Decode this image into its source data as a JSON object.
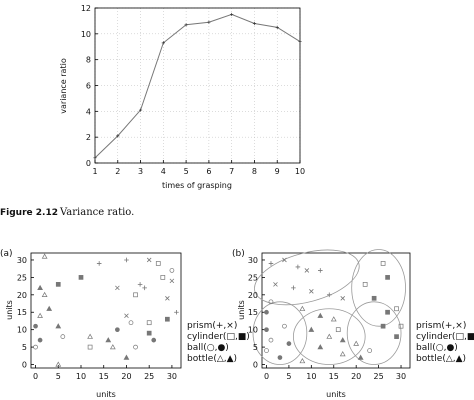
{
  "caption": {
    "number": "Figure 2.12",
    "text": "Variance ratio."
  },
  "chart_data": [
    {
      "type": "line",
      "title": "",
      "xlabel": "times of grasping",
      "ylabel": "variance ratio",
      "x": [
        1,
        2,
        3,
        4,
        5,
        6,
        7,
        8,
        9,
        10
      ],
      "series": [
        {
          "values": [
            0.4,
            2.1,
            4.1,
            9.3,
            10.7,
            10.9,
            11.5,
            10.8,
            10.5,
            9.4
          ]
        }
      ],
      "xlim": [
        1,
        10
      ],
      "ylim": [
        0,
        12
      ],
      "xticks": [
        1,
        2,
        3,
        4,
        5,
        6,
        7,
        8,
        9,
        10
      ],
      "yticks": [
        0,
        2,
        4,
        6,
        8,
        10,
        12
      ],
      "grid": true,
      "line_color": "#777777"
    },
    {
      "type": "scatter",
      "panel_label": "(a)",
      "xlabel": "units",
      "ylabel": "units",
      "xlim": [
        -1,
        32
      ],
      "ylim": [
        -1,
        32
      ],
      "xticks": [
        0,
        5,
        10,
        15,
        20,
        25,
        30
      ],
      "yticks": [
        0,
        5,
        10,
        15,
        20,
        25,
        30
      ],
      "legend_position": "right",
      "series": [
        {
          "name": "prism(+,×)",
          "marker": "cross",
          "points": [
            [
              20,
              30
            ],
            [
              25,
              30
            ],
            [
              14,
              29
            ],
            [
              30,
              24
            ],
            [
              23,
              23
            ],
            [
              18,
              22
            ],
            [
              24,
              22
            ],
            [
              29,
              19
            ],
            [
              31,
              15
            ],
            [
              20,
              14
            ]
          ]
        },
        {
          "name": "cylinder(□,■)",
          "marker": "square",
          "points": [
            [
              27,
              29
            ],
            [
              10,
              25
            ],
            [
              28,
              25
            ],
            [
              5,
              23
            ],
            [
              22,
              20
            ],
            [
              29,
              13
            ],
            [
              25,
              12
            ],
            [
              25,
              9
            ],
            [
              12,
              5
            ]
          ]
        },
        {
          "name": "ball(○,●)",
          "marker": "circle",
          "points": [
            [
              30,
              27
            ],
            [
              0,
              11
            ],
            [
              6,
              8
            ],
            [
              1,
              7
            ],
            [
              0,
              5
            ],
            [
              18,
              10
            ],
            [
              21,
              12
            ],
            [
              26,
              7
            ],
            [
              22,
              5
            ]
          ]
        },
        {
          "name": "bottle(△,▲)",
          "marker": "triangle",
          "points": [
            [
              2,
              31
            ],
            [
              1,
              22
            ],
            [
              2,
              20
            ],
            [
              3,
              16
            ],
            [
              1,
              14
            ],
            [
              5,
              11
            ],
            [
              12,
              8
            ],
            [
              16,
              7
            ],
            [
              17,
              5
            ],
            [
              20,
              2
            ],
            [
              5,
              0
            ]
          ]
        }
      ]
    },
    {
      "type": "scatter",
      "panel_label": "(b)",
      "xlabel": "units",
      "ylabel": "units",
      "xlim": [
        -1,
        32
      ],
      "ylim": [
        -1,
        32
      ],
      "xticks": [
        0,
        5,
        10,
        15,
        20,
        25,
        30
      ],
      "yticks": [
        0,
        5,
        10,
        15,
        20,
        25,
        30
      ],
      "legend_position": "right",
      "ellipses": [
        {
          "cx": 9,
          "cy": 25,
          "rx": 12,
          "ry": 7,
          "rotate": -15
        },
        {
          "cx": 25,
          "cy": 22,
          "rx": 6,
          "ry": 11,
          "rotate": 0
        },
        {
          "cx": 3,
          "cy": 9,
          "rx": 6,
          "ry": 9,
          "rotate": 0
        },
        {
          "cx": 14,
          "cy": 8,
          "rx": 8,
          "ry": 8,
          "rotate": 0
        },
        {
          "cx": 24,
          "cy": 9,
          "rx": 6,
          "ry": 9,
          "rotate": 0
        }
      ],
      "series": [
        {
          "name": "prism(+,×)",
          "marker": "cross",
          "points": [
            [
              1,
              29
            ],
            [
              4,
              30
            ],
            [
              7,
              28
            ],
            [
              9,
              27
            ],
            [
              12,
              27
            ],
            [
              2,
              23
            ],
            [
              6,
              22
            ],
            [
              10,
              21
            ],
            [
              14,
              20
            ],
            [
              17,
              19
            ]
          ]
        },
        {
          "name": "cylinder(□,■,▩)",
          "marker": "square",
          "points": [
            [
              26,
              29
            ],
            [
              27,
              25
            ],
            [
              22,
              23
            ],
            [
              24,
              19
            ],
            [
              29,
              16
            ],
            [
              27,
              15
            ],
            [
              30,
              11
            ],
            [
              26,
              11
            ],
            [
              16,
              10
            ],
            [
              29,
              8
            ]
          ]
        },
        {
          "name": "ball(○,●)",
          "marker": "circle",
          "points": [
            [
              1,
              18
            ],
            [
              0,
              15
            ],
            [
              4,
              11
            ],
            [
              0,
              10
            ],
            [
              1,
              7
            ],
            [
              5,
              6
            ],
            [
              0,
              4
            ],
            [
              3,
              2
            ],
            [
              23,
              4
            ]
          ]
        },
        {
          "name": "bottle(△,▲)",
          "marker": "triangle",
          "points": [
            [
              8,
              16
            ],
            [
              12,
              14
            ],
            [
              15,
              13
            ],
            [
              10,
              10
            ],
            [
              14,
              8
            ],
            [
              17,
              7
            ],
            [
              20,
              6
            ],
            [
              12,
              5
            ],
            [
              17,
              3
            ],
            [
              21,
              2
            ],
            [
              8,
              1
            ]
          ]
        }
      ]
    }
  ]
}
